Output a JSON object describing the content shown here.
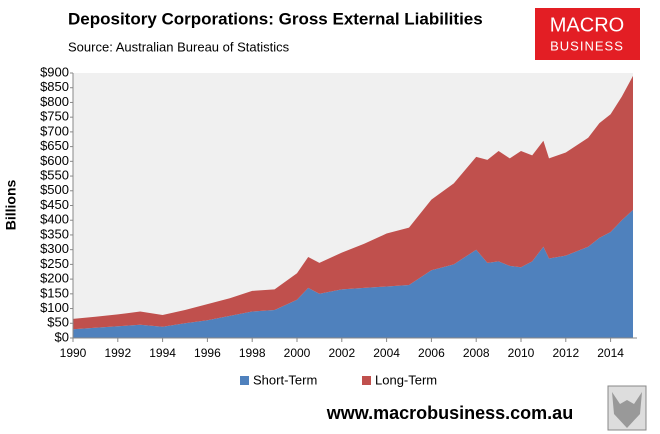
{
  "chart_data": {
    "type": "stacked_area",
    "title": "Depository Corporations: Gross External Liabilities",
    "subtitle": "Source: Australian Bureau of Statistics",
    "y_label": "Billions",
    "x": [
      1990,
      1991,
      1992,
      1993,
      1994,
      1995,
      1996,
      1997,
      1998,
      1999,
      2000,
      2000.5,
      2001,
      2002,
      2003,
      2004,
      2005,
      2006,
      2007,
      2008,
      2008.5,
      2009,
      2009.5,
      2010,
      2010.5,
      2011,
      2011.25,
      2012,
      2013,
      2013.5,
      2014,
      2014.5,
      2015
    ],
    "series": [
      {
        "name": "Short-Term",
        "color": "#4f81bd",
        "values": [
          30,
          35,
          40,
          45,
          38,
          50,
          60,
          75,
          90,
          95,
          130,
          170,
          150,
          165,
          170,
          175,
          180,
          230,
          250,
          300,
          255,
          260,
          245,
          240,
          260,
          310,
          270,
          280,
          310,
          340,
          360,
          400,
          435
        ]
      },
      {
        "name": "Long-Term",
        "color": "#c0504d",
        "values": [
          35,
          37,
          40,
          45,
          40,
          45,
          55,
          60,
          70,
          70,
          90,
          105,
          105,
          125,
          150,
          180,
          195,
          240,
          275,
          315,
          350,
          375,
          365,
          395,
          360,
          360,
          340,
          350,
          370,
          390,
          400,
          420,
          455
        ]
      }
    ],
    "xlim": [
      1990,
      2015
    ],
    "xticks": [
      1990,
      1992,
      1994,
      1996,
      1998,
      2000,
      2002,
      2004,
      2006,
      2008,
      2010,
      2012,
      2014
    ],
    "ylim": [
      0,
      900
    ],
    "yticks": [
      {
        "value": 0,
        "label": "$0"
      },
      {
        "value": 50,
        "label": "$50"
      },
      {
        "value": 100,
        "label": "$100"
      },
      {
        "value": 150,
        "label": "$150"
      },
      {
        "value": 200,
        "label": "$200"
      },
      {
        "value": 250,
        "label": "$250"
      },
      {
        "value": 300,
        "label": "$300"
      },
      {
        "value": 350,
        "label": "$350"
      },
      {
        "value": 400,
        "label": "$400"
      },
      {
        "value": 450,
        "label": "$450"
      },
      {
        "value": 500,
        "label": "$500"
      },
      {
        "value": 550,
        "label": "$550"
      },
      {
        "value": 600,
        "label": "$600"
      },
      {
        "value": 650,
        "label": "$650"
      },
      {
        "value": 700,
        "label": "$700"
      },
      {
        "value": 750,
        "label": "$750"
      },
      {
        "value": 800,
        "label": "$800"
      },
      {
        "value": 850,
        "label": "$850"
      },
      {
        "value": 900,
        "label": "$900"
      }
    ],
    "grid": false,
    "legend": "bottom",
    "plot_background": "#f0f0f0"
  },
  "branding": {
    "logo_top": "MACRO",
    "logo_bottom": "BUSINESS",
    "website": "www.macrobusiness.com.au"
  }
}
